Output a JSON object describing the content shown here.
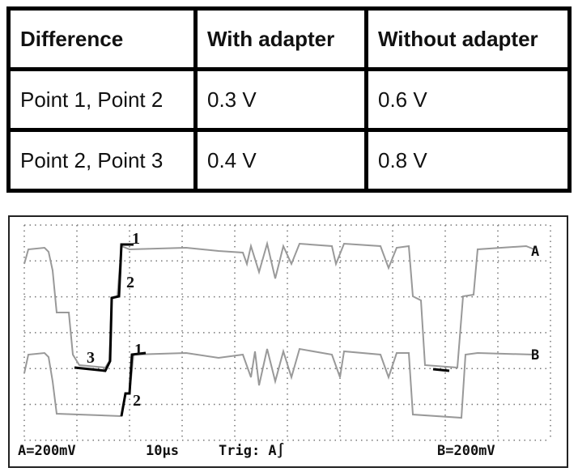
{
  "table": {
    "header": [
      "Difference",
      "With adapter",
      "Without adapter"
    ],
    "rows": [
      [
        "Point 1, Point 2",
        "0.3 V",
        "0.6 V"
      ],
      [
        "Point 2, Point 3",
        "0.4 V",
        "0.8 V"
      ]
    ]
  },
  "scope": {
    "markers": [
      "1",
      "2",
      "3",
      "1",
      "2"
    ],
    "channel_a": "A",
    "channel_b": "B",
    "status_left": "A=200mV",
    "timebase": "10µs",
    "trigger": "Trig: A∫",
    "status_right": "B=200mV"
  }
}
